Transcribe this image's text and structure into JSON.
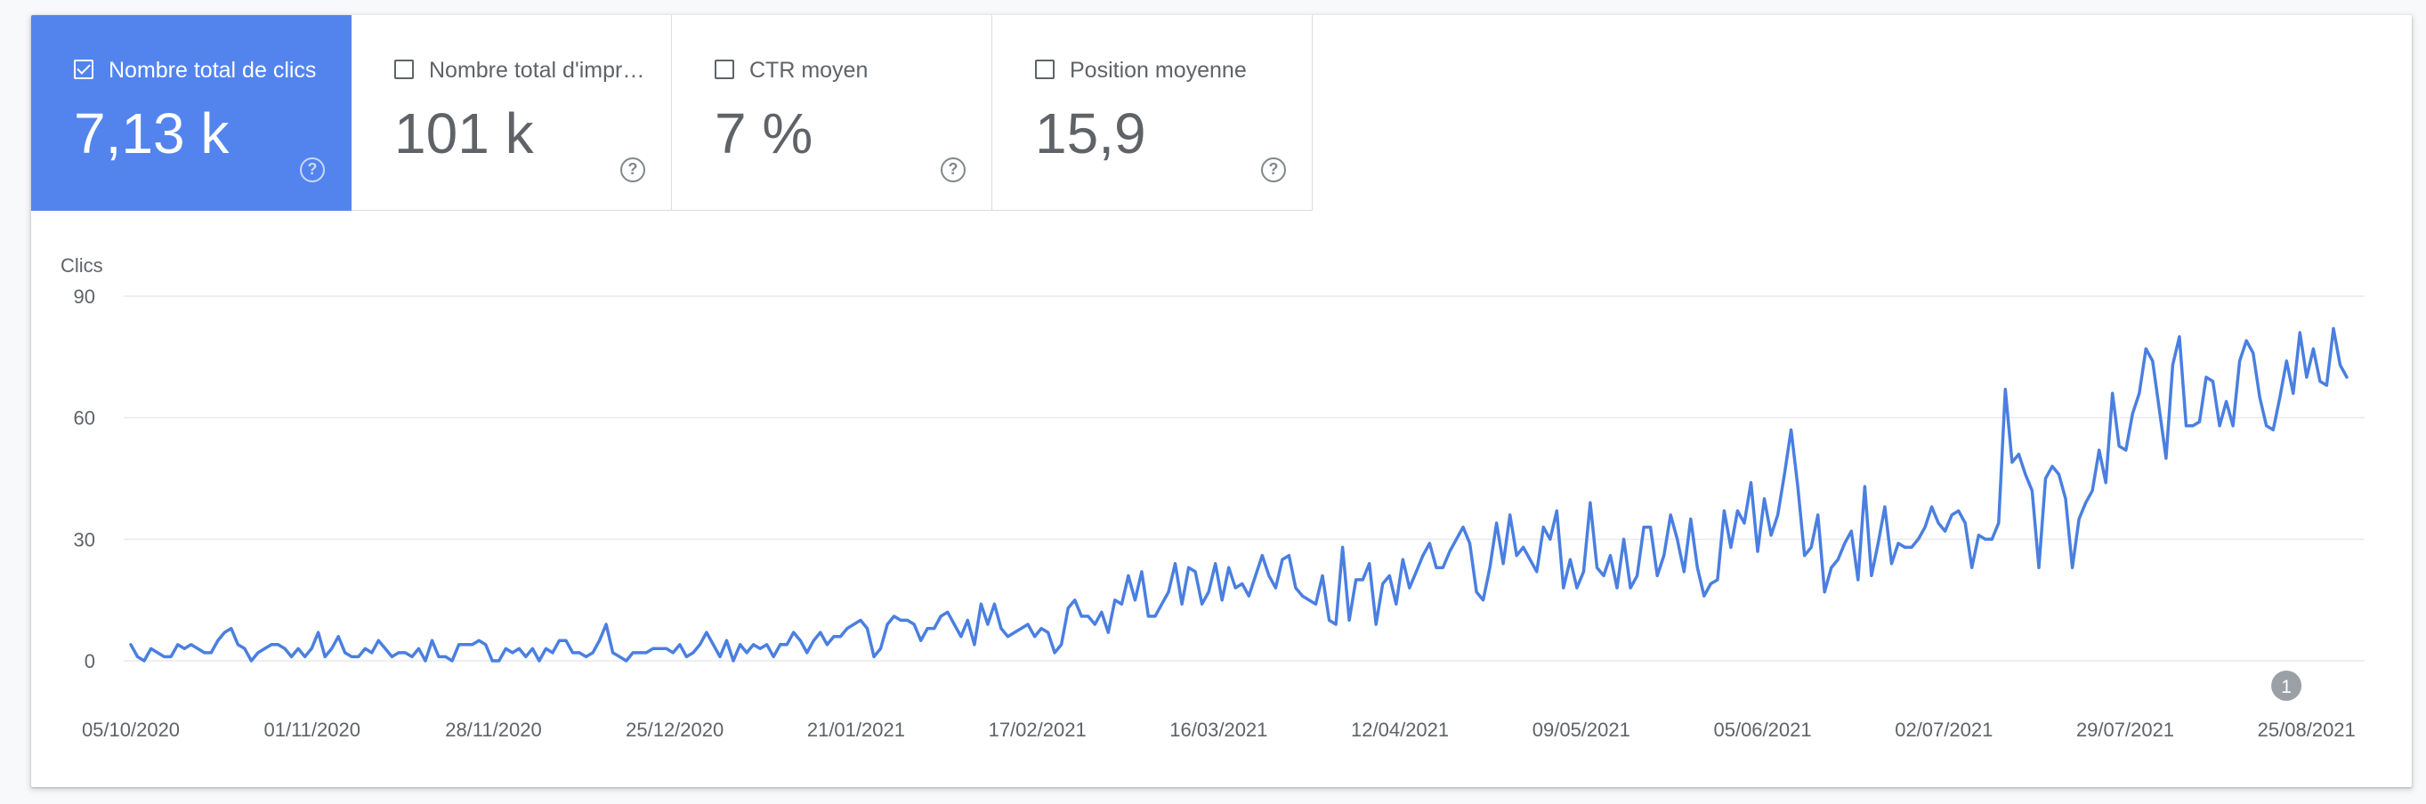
{
  "metrics": [
    {
      "label": "Nombre total de clics",
      "value": "7,13 k",
      "checked": true,
      "help": "?"
    },
    {
      "label": "Nombre total d'impressions",
      "value": "101 k",
      "checked": false,
      "help": "?"
    },
    {
      "label": "CTR moyen",
      "value": "7 %",
      "checked": false,
      "help": "?"
    },
    {
      "label": "Position moyenne",
      "value": "15,9",
      "checked": false,
      "help": "?"
    }
  ],
  "colors": {
    "accent": "#5384ee",
    "line": "#4a7fe1",
    "grid": "#e8eaed",
    "annotation": "#9aa0a6"
  },
  "chart_data": {
    "type": "line",
    "ylabel": "Clics",
    "ylim": [
      0,
      90
    ],
    "yticks": [
      0,
      30,
      60,
      90
    ],
    "x_start": "2020-10-05",
    "x_end": "2021-08-31",
    "xtick_labels": [
      "05/10/2020",
      "01/11/2020",
      "28/11/2020",
      "25/12/2020",
      "21/01/2021",
      "17/02/2021",
      "16/03/2021",
      "12/04/2021",
      "09/05/2021",
      "05/06/2021",
      "02/07/2021",
      "29/07/2021",
      "25/08/2021"
    ],
    "annotation": {
      "label": "1",
      "date": "2021-08-22"
    },
    "series": [
      {
        "color": "#4a7fe1",
        "values": [
          4,
          1,
          0,
          3,
          2,
          1,
          1,
          4,
          3,
          4,
          3,
          2,
          2,
          5,
          7,
          8,
          4,
          3,
          0,
          2,
          3,
          4,
          4,
          3,
          1,
          3,
          1,
          3,
          7,
          1,
          3,
          6,
          2,
          1,
          1,
          3,
          2,
          5,
          3,
          1,
          2,
          2,
          1,
          3,
          0,
          5,
          1,
          1,
          0,
          4,
          4,
          4,
          5,
          4,
          0,
          0,
          3,
          2,
          3,
          1,
          3,
          0,
          3,
          2,
          5,
          5,
          2,
          2,
          1,
          2,
          5,
          9,
          2,
          1,
          0,
          2,
          2,
          2,
          3,
          3,
          3,
          2,
          4,
          1,
          2,
          4,
          7,
          4,
          1,
          5,
          0,
          4,
          2,
          4,
          3,
          4,
          1,
          4,
          4,
          7,
          5,
          2,
          5,
          7,
          4,
          6,
          6,
          8,
          9,
          10,
          8,
          1,
          3,
          9,
          11,
          10,
          10,
          9,
          5,
          8,
          8,
          11,
          12,
          9,
          6,
          10,
          4,
          14,
          9,
          14,
          8,
          6,
          7,
          8,
          9,
          6,
          8,
          7,
          2,
          4,
          13,
          15,
          11,
          11,
          9,
          12,
          7,
          15,
          14,
          21,
          15,
          22,
          11,
          11,
          14,
          17,
          24,
          14,
          23,
          22,
          14,
          17,
          24,
          15,
          23,
          18,
          19,
          16,
          21,
          26,
          21,
          18,
          25,
          26,
          18,
          16,
          15,
          14,
          21,
          10,
          9,
          28,
          10,
          20,
          20,
          24,
          9,
          19,
          21,
          14,
          25,
          18,
          22,
          26,
          29,
          23,
          23,
          27,
          30,
          33,
          29,
          17,
          15,
          23,
          34,
          24,
          36,
          26,
          28,
          25,
          22,
          33,
          30,
          37,
          18,
          25,
          18,
          22,
          39,
          23,
          21,
          26,
          18,
          30,
          18,
          21,
          33,
          33,
          21,
          26,
          36,
          30,
          22,
          35,
          23,
          16,
          19,
          20,
          37,
          28,
          37,
          34,
          44,
          27,
          40,
          31,
          36,
          46,
          57,
          43,
          26,
          28,
          36,
          17,
          23,
          25,
          29,
          32,
          20,
          43,
          21,
          29,
          38,
          24,
          29,
          28,
          28,
          30,
          33,
          38,
          34,
          32,
          36,
          37,
          34,
          23,
          31,
          30,
          30,
          34,
          67,
          49,
          51,
          46,
          42,
          23,
          45,
          48,
          46,
          40,
          23,
          35,
          39,
          42,
          52,
          44,
          66,
          53,
          52,
          61,
          66,
          77,
          74,
          62,
          50,
          73,
          80,
          58,
          58,
          59,
          70,
          69,
          58,
          64,
          58,
          74,
          79,
          76,
          65,
          58,
          57,
          65,
          74,
          66,
          81,
          70,
          77,
          69,
          68,
          82,
          73,
          70
        ]
      }
    ]
  }
}
